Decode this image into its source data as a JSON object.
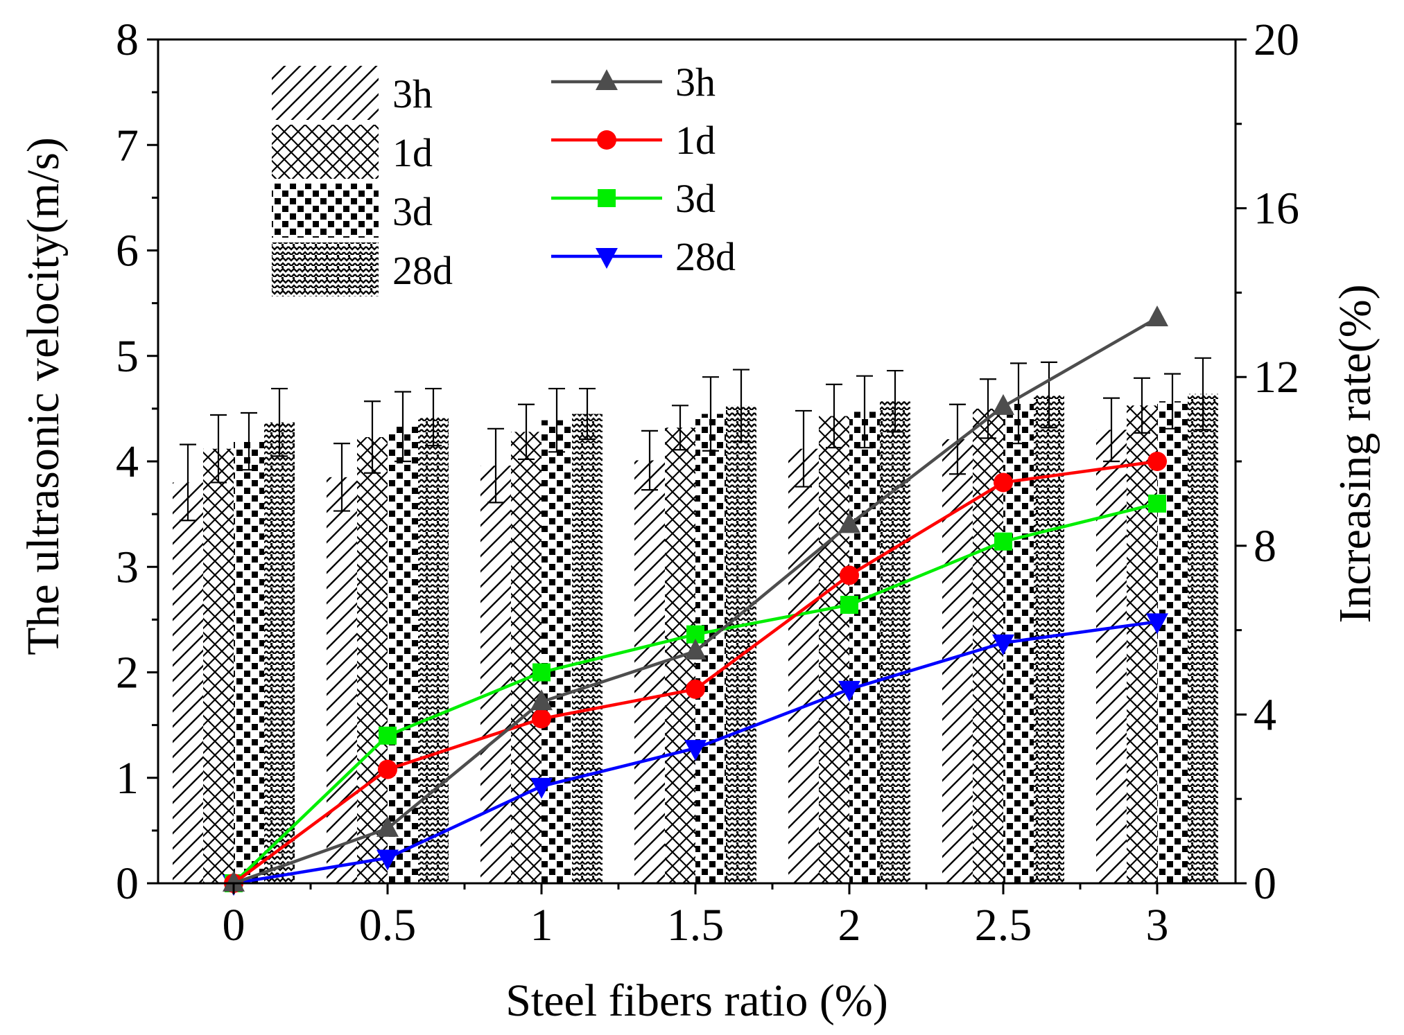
{
  "chart_data": {
    "type": "bar+line",
    "xlabel": "Steel fibers ratio (%)",
    "ylabel_left": "The ultrasonic velocity(m/s)",
    "ylabel_right": "Increasing rate(%)",
    "ylim_left": [
      0,
      8
    ],
    "ylim_right": [
      0,
      20
    ],
    "left_ticks": [
      "0",
      "1",
      "2",
      "3",
      "4",
      "5",
      "6",
      "7",
      "8"
    ],
    "right_ticks": [
      "0",
      "4",
      "8",
      "12",
      "16",
      "20"
    ],
    "categories": [
      "0",
      "0.5",
      "1",
      "1.5",
      "2",
      "2.5",
      "3"
    ],
    "bar_series": [
      {
        "name": "3h",
        "pattern": "hatch",
        "values": [
          3.8,
          3.85,
          3.96,
          4.01,
          4.12,
          4.21,
          4.3
        ],
        "errors": [
          0.36,
          0.32,
          0.35,
          0.28,
          0.36,
          0.33,
          0.3
        ]
      },
      {
        "name": "1d",
        "pattern": "cross",
        "values": [
          4.12,
          4.23,
          4.28,
          4.32,
          4.43,
          4.5,
          4.53
        ],
        "errors": [
          0.32,
          0.34,
          0.26,
          0.21,
          0.3,
          0.28,
          0.26
        ]
      },
      {
        "name": "3d",
        "pattern": "checker",
        "values": [
          4.19,
          4.33,
          4.39,
          4.45,
          4.47,
          4.55,
          4.57
        ],
        "errors": [
          0.27,
          0.33,
          0.3,
          0.35,
          0.34,
          0.38,
          0.26
        ]
      },
      {
        "name": "28d",
        "pattern": "zigzag",
        "values": [
          4.37,
          4.42,
          4.45,
          4.53,
          4.57,
          4.63,
          4.64
        ],
        "errors": [
          0.32,
          0.27,
          0.24,
          0.34,
          0.29,
          0.31,
          0.34
        ]
      }
    ],
    "line_series": [
      {
        "name": "3h",
        "color": "#4d4d4d",
        "marker": "triangle-up",
        "values": [
          0,
          1.3,
          4.3,
          5.5,
          8.5,
          11.3,
          13.4
        ]
      },
      {
        "name": "1d",
        "color": "#ff0000",
        "marker": "circle",
        "values": [
          0,
          2.7,
          3.9,
          4.6,
          7.3,
          9.5,
          10.0
        ]
      },
      {
        "name": "3d",
        "color": "#00ee00",
        "marker": "square",
        "values": [
          0,
          3.5,
          5.0,
          5.9,
          6.6,
          8.1,
          9.0
        ]
      },
      {
        "name": "28d",
        "color": "#0000ff",
        "marker": "triangle-down",
        "values": [
          0,
          0.6,
          2.3,
          3.2,
          4.6,
          5.7,
          6.2
        ]
      }
    ],
    "legend_position": "top-left, inside plot"
  }
}
